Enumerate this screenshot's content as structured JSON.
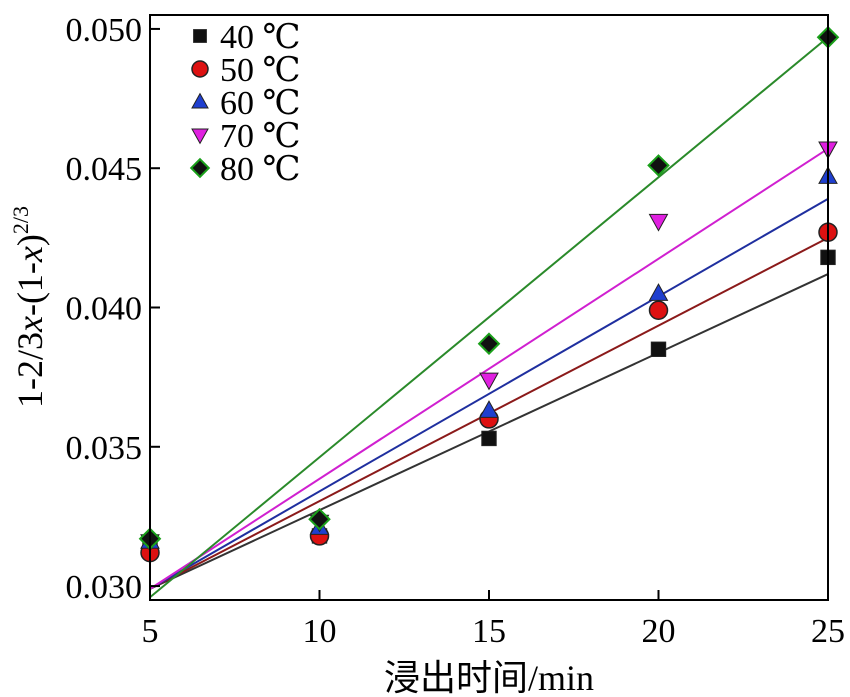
{
  "chart_data": {
    "type": "scatter",
    "title": "",
    "xlabel": "浸出时间/min",
    "ylabel": {
      "parts": [
        "1-2/3",
        "x",
        "-(1-",
        "x",
        ")",
        "2/3"
      ]
    },
    "xlim": [
      5,
      25
    ],
    "ylim": [
      0.0295,
      0.0505
    ],
    "xticks": [
      5,
      10,
      15,
      20,
      25
    ],
    "xtick_labels": [
      "5",
      "10",
      "15",
      "20",
      "25"
    ],
    "yticks": [
      0.03,
      0.035,
      0.04,
      0.045,
      0.05
    ],
    "ytick_labels": [
      "0.030",
      "0.035",
      "0.040",
      "0.045",
      "0.050"
    ],
    "grid": false,
    "legend_position": "top-left",
    "x": [
      5,
      10,
      15,
      20,
      25
    ],
    "series": [
      {
        "name": "40 ℃",
        "marker": "square",
        "color": "#111111",
        "line_color": "#333333",
        "values": [
          0.0315,
          0.0318,
          0.0353,
          0.0385,
          0.0418
        ],
        "fit": [
          [
            5,
            0.0299
          ],
          [
            25,
            0.0412
          ]
        ]
      },
      {
        "name": "50 ℃",
        "marker": "circle",
        "color": "#dd1111",
        "line_color": "#8b1a1a",
        "values": [
          0.0312,
          0.0318,
          0.036,
          0.0399,
          0.0427
        ],
        "fit": [
          [
            5,
            0.0299
          ],
          [
            25,
            0.0425
          ]
        ]
      },
      {
        "name": "60 ℃",
        "marker": "triangle-up",
        "color": "#1f3fcf",
        "line_color": "#1f2f9f",
        "values": [
          0.0316,
          0.0321,
          0.0363,
          0.0405,
          0.0447
        ],
        "fit": [
          [
            5,
            0.0299
          ],
          [
            25,
            0.0439
          ]
        ]
      },
      {
        "name": "70 ℃",
        "marker": "triangle-down",
        "color": "#e020e0",
        "line_color": "#d020d0",
        "values": [
          0.0316,
          0.0323,
          0.0374,
          0.0431,
          0.0457
        ],
        "fit": [
          [
            5,
            0.0299
          ],
          [
            25,
            0.0457
          ]
        ]
      },
      {
        "name": "80 ℃",
        "marker": "diamond",
        "color": "#111111",
        "edge_color": "#1aa01a",
        "line_color": "#2a8a2a",
        "values": [
          0.0317,
          0.0324,
          0.0387,
          0.0451,
          0.0497
        ],
        "fit": [
          [
            5,
            0.0296
          ],
          [
            25,
            0.0497
          ]
        ]
      }
    ]
  }
}
